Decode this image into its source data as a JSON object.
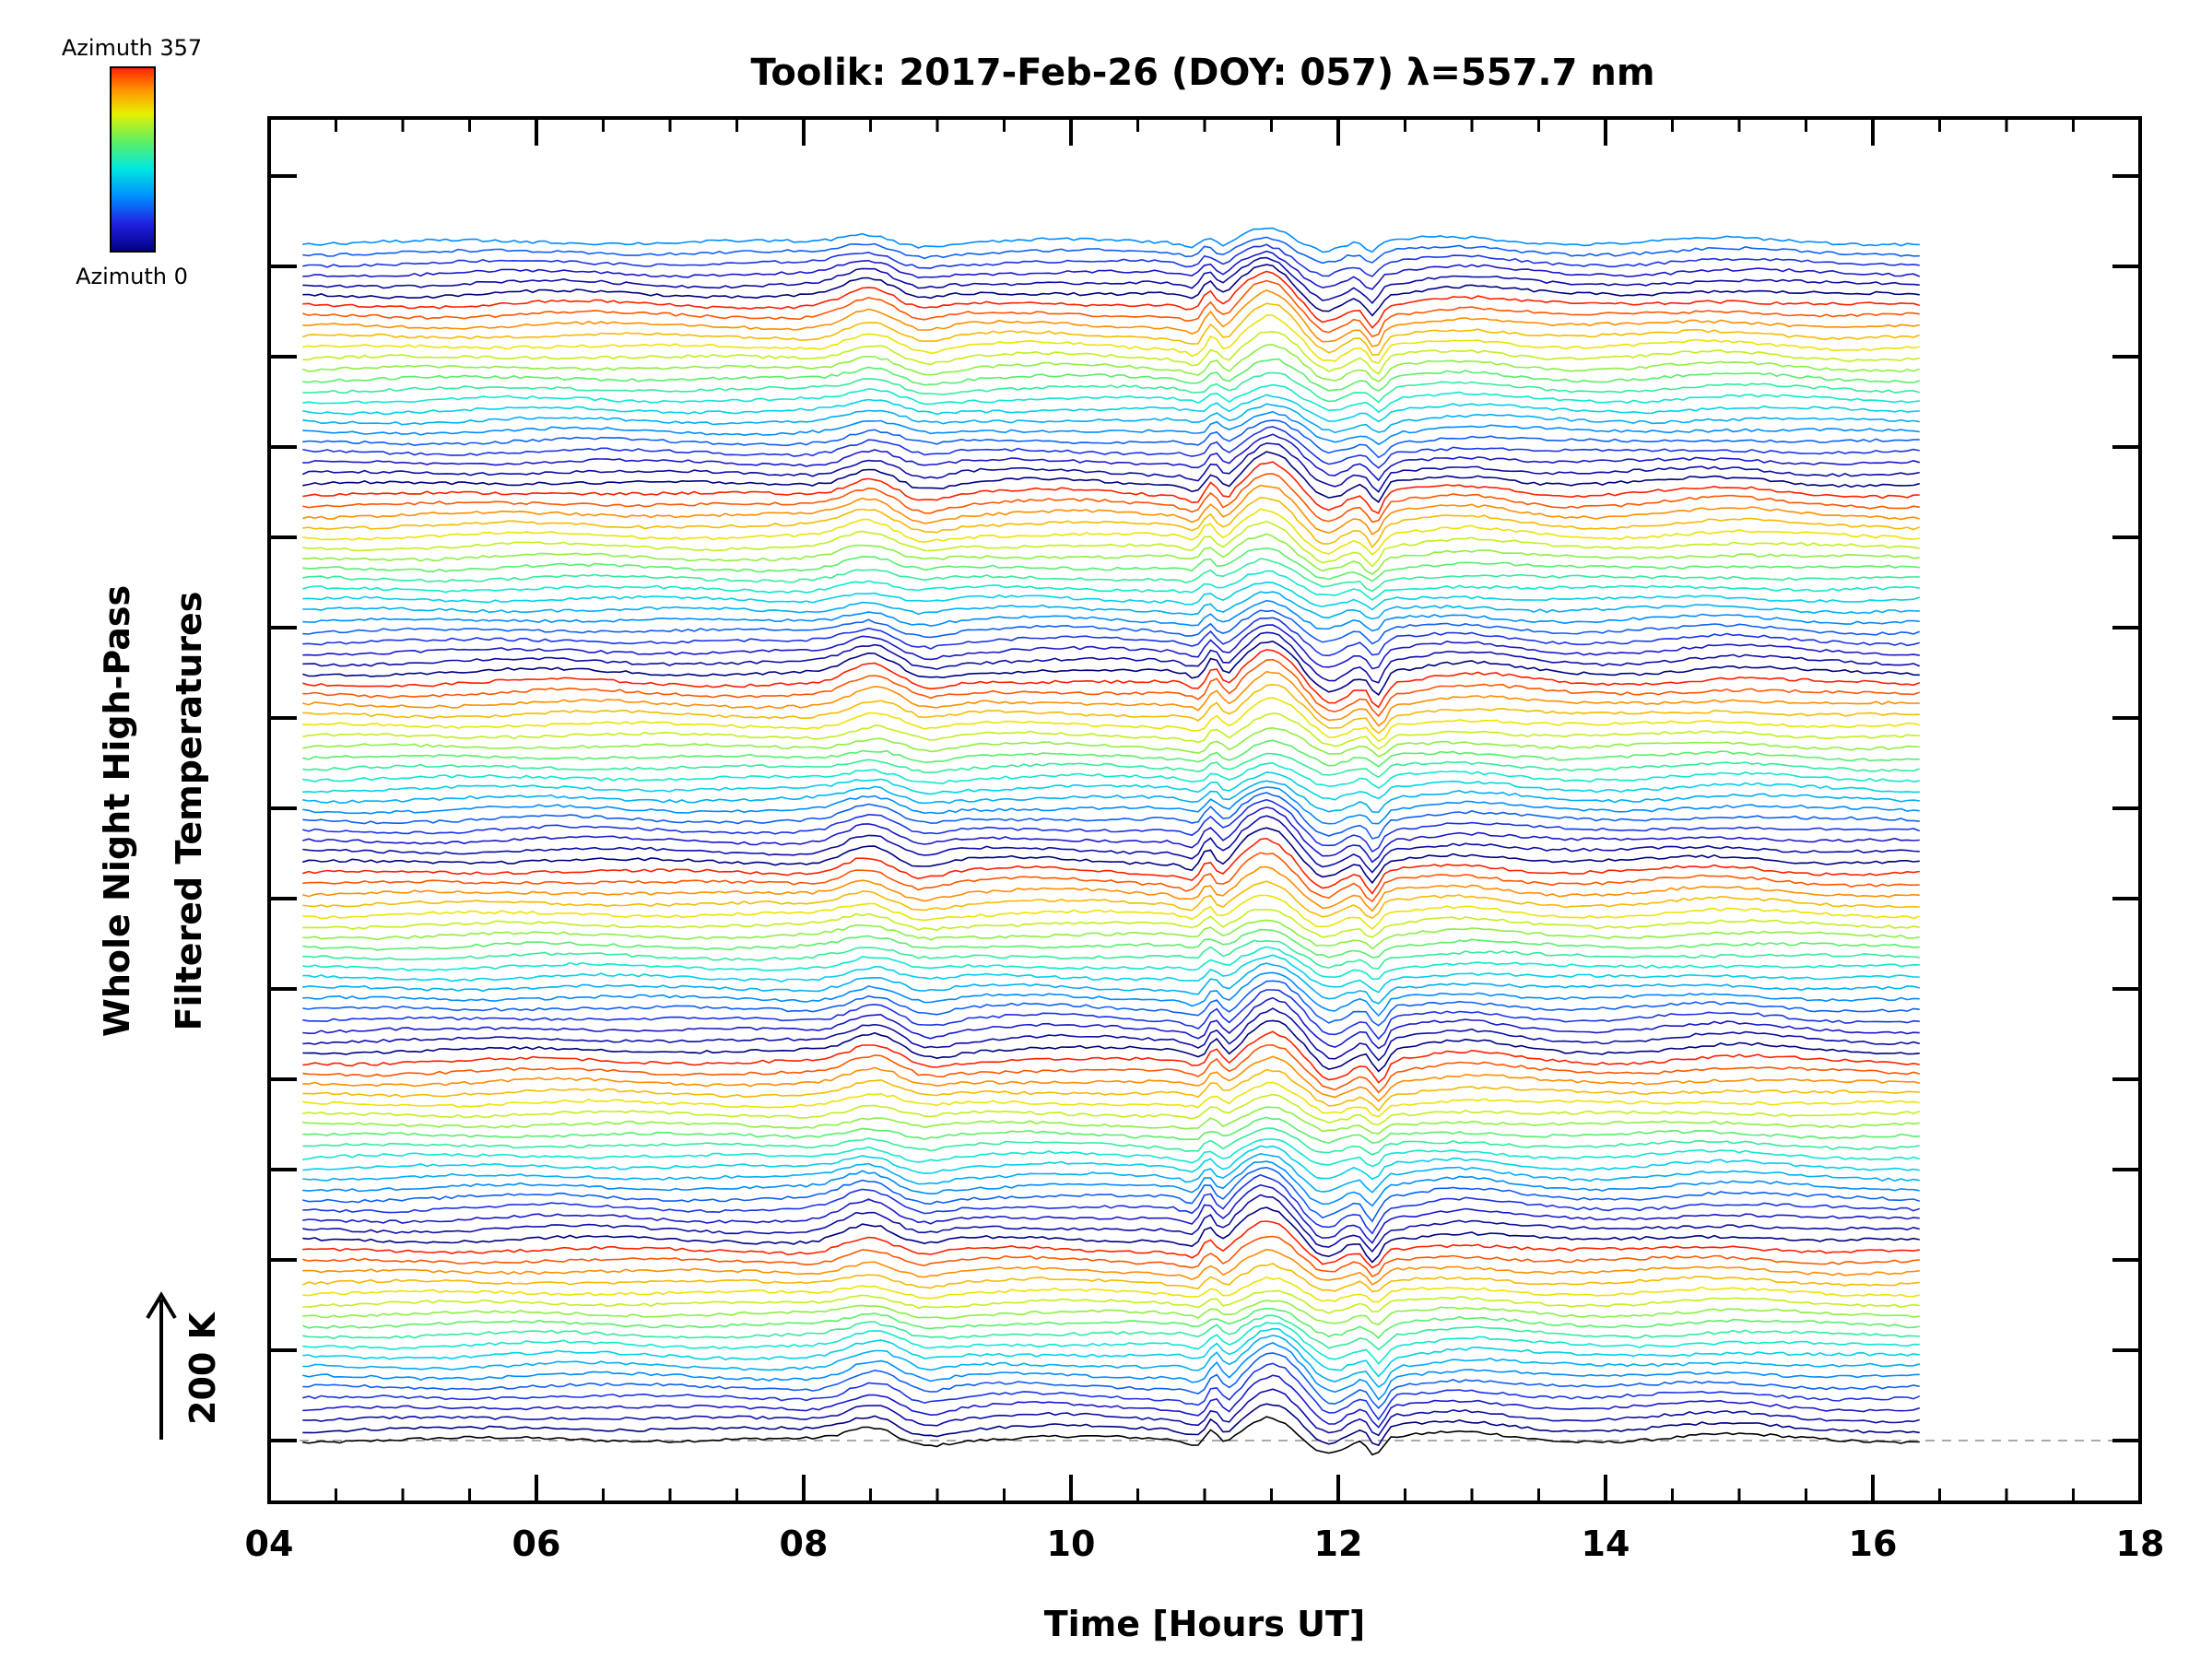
{
  "chart_data": {
    "type": "line",
    "title": "Toolik: 2017-Feb-26 (DOY: 057) λ=557.7 nm",
    "xlabel": "Time [Hours UT]",
    "ylabel_line1": "Whole Night High-Pass",
    "ylabel_line2": "Filtered Temperatures",
    "scale_bar_label": "200 K",
    "xlim": [
      4,
      18
    ],
    "x_ticks": [
      "04",
      "06",
      "08",
      "10",
      "12",
      "14",
      "16",
      "18"
    ],
    "x_tick_values": [
      4,
      6,
      8,
      10,
      12,
      14,
      16,
      18
    ],
    "data_time_range": [
      4.25,
      16.35
    ],
    "n_series": 115,
    "series_offset_K": 15,
    "colorbar": {
      "label_top": "Azimuth 357",
      "label_bottom": "Azimuth 0",
      "azimuth_range": [
        0,
        357
      ],
      "colormap": "rainbow"
    },
    "common_features": [
      {
        "time": 8.5,
        "amplitude_K": 22,
        "width_h": 0.18
      },
      {
        "time": 8.9,
        "amplitude_K": -8,
        "width_h": 0.15
      },
      {
        "time": 10.95,
        "amplitude_K": -9,
        "width_h": 0.08
      },
      {
        "time": 11.05,
        "amplitude_K": 22,
        "width_h": 0.05
      },
      {
        "time": 11.15,
        "amplitude_K": -9,
        "width_h": 0.06
      },
      {
        "time": 11.48,
        "amplitude_K": 42,
        "width_h": 0.17
      },
      {
        "time": 11.92,
        "amplitude_K": -22,
        "width_h": 0.12
      },
      {
        "time": 12.28,
        "amplitude_K": -28,
        "width_h": 0.05
      },
      {
        "time": 12.95,
        "amplitude_K": 12,
        "width_h": 0.35
      },
      {
        "time": 14.9,
        "amplitude_K": 8,
        "width_h": 0.4
      },
      {
        "time": 6.2,
        "amplitude_K": 4,
        "width_h": 0.5
      },
      {
        "time": 9.8,
        "amplitude_K": 5,
        "width_h": 0.5
      }
    ]
  }
}
